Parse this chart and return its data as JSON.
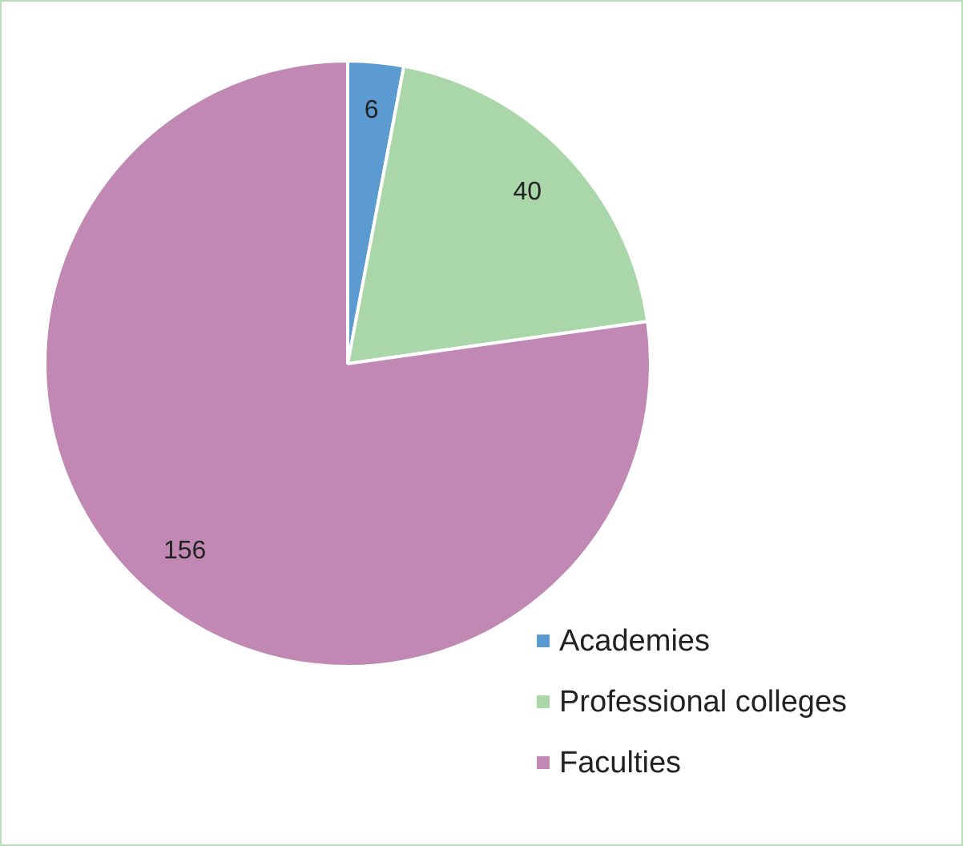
{
  "chart_data": {
    "type": "pie",
    "categories": [
      "Academies",
      "Professional colleges",
      "Faculties"
    ],
    "values": [
      6,
      40,
      156
    ],
    "colors": [
      "#5b9bd1",
      "#a9d7a9",
      "#c088b3"
    ],
    "data_labels": true,
    "legend": "bottom right"
  }
}
